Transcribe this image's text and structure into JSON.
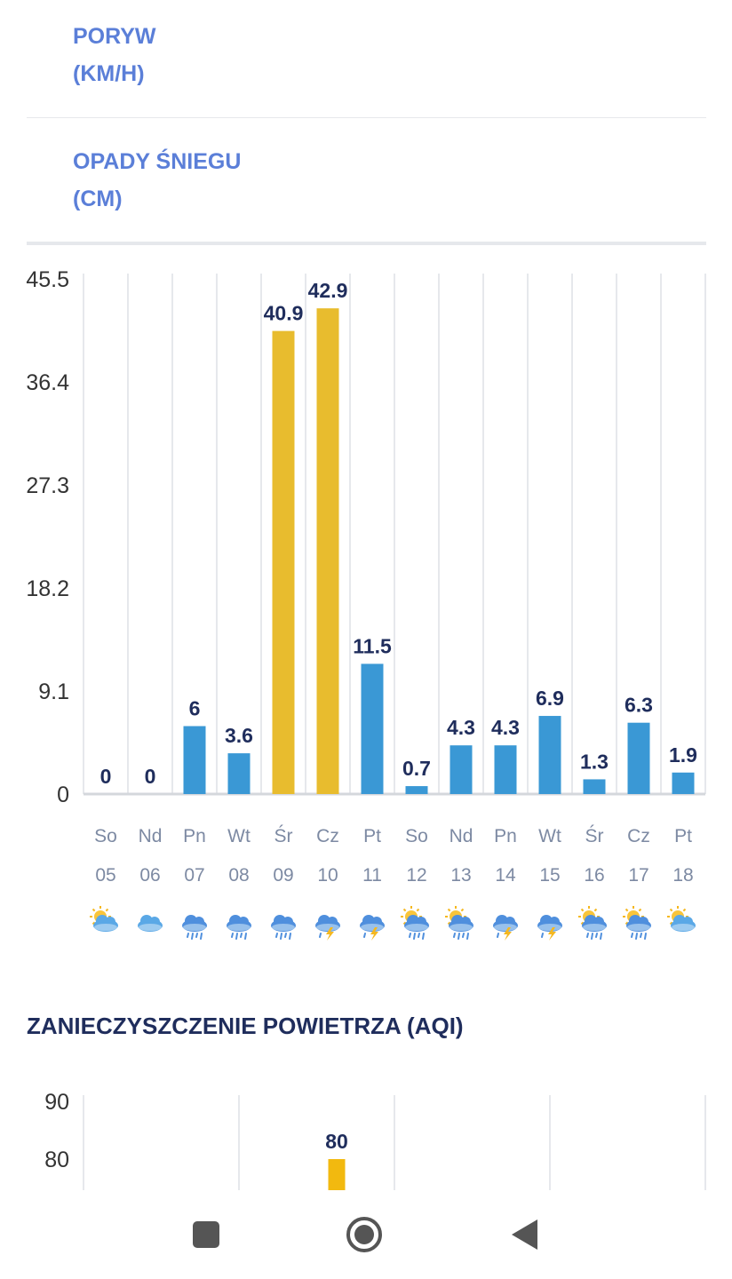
{
  "tabs": {
    "gust_line1": "PORYW",
    "gust_line2": "(KM/H)",
    "snow_line1": "OPADY ŚNIEGU",
    "snow_line2": "(CM)"
  },
  "colors": {
    "accent_blue": "#3a98d5",
    "accent_yellow": "#e8bc2e",
    "label_dark": "#1f2d5c",
    "axis_text": "#333333",
    "day_text": "#7d8aa3",
    "link_blue": "#5b7fd8"
  },
  "chart_data": [
    {
      "type": "bar",
      "title": "OPADY ŚNIEGU (CM)",
      "ylim": [
        0,
        45.5
      ],
      "yticks": [
        "45.5",
        "36.4",
        "27.3",
        "18.2",
        "9.1",
        "0"
      ],
      "ytick_values": [
        45.5,
        36.4,
        27.3,
        18.2,
        9.1,
        0
      ],
      "days": [
        "So",
        "Nd",
        "Pn",
        "Wt",
        "Śr",
        "Cz",
        "Pt",
        "So",
        "Nd",
        "Pn",
        "Wt",
        "Śr",
        "Cz",
        "Pt"
      ],
      "dates": [
        "05",
        "06",
        "07",
        "08",
        "09",
        "10",
        "11",
        "12",
        "13",
        "14",
        "15",
        "16",
        "17",
        "18"
      ],
      "values": [
        0,
        0,
        6,
        3.6,
        40.9,
        42.9,
        11.5,
        0.7,
        4.3,
        4.3,
        6.9,
        1.3,
        6.3,
        1.9
      ],
      "labels": [
        "0",
        "0",
        "6",
        "3.6",
        "40.9",
        "42.9",
        "11.5",
        "0.7",
        "4.3",
        "4.3",
        "6.9",
        "1.3",
        "6.3",
        "1.9"
      ],
      "highlight": [
        false,
        false,
        false,
        false,
        true,
        true,
        false,
        false,
        false,
        false,
        false,
        false,
        false,
        false
      ],
      "weather_icons": [
        "sun-cloud-icon",
        "cloud-icon",
        "cloud-rain-icon",
        "cloud-rain-icon",
        "cloud-rain-icon",
        "cloud-storm-icon",
        "cloud-storm-icon",
        "sun-cloud-rain-icon",
        "sun-cloud-rain-icon",
        "cloud-storm-icon",
        "cloud-storm-icon",
        "sun-cloud-rain-icon",
        "sun-cloud-rain-icon",
        "sun-cloud-icon"
      ]
    },
    {
      "type": "bar",
      "title": "ZANIECZYSZCZENIE POWIETRZA (AQI)",
      "yticks": [
        "90",
        "80"
      ],
      "ytick_values": [
        90,
        80
      ],
      "values": [
        80
      ],
      "labels": [
        "80"
      ]
    }
  ],
  "aqi": {
    "title": "ZANIECZYSZCZENIE POWIETRZA (AQI)"
  },
  "nav": {
    "recent": "recent-apps",
    "home": "home",
    "back": "back"
  }
}
